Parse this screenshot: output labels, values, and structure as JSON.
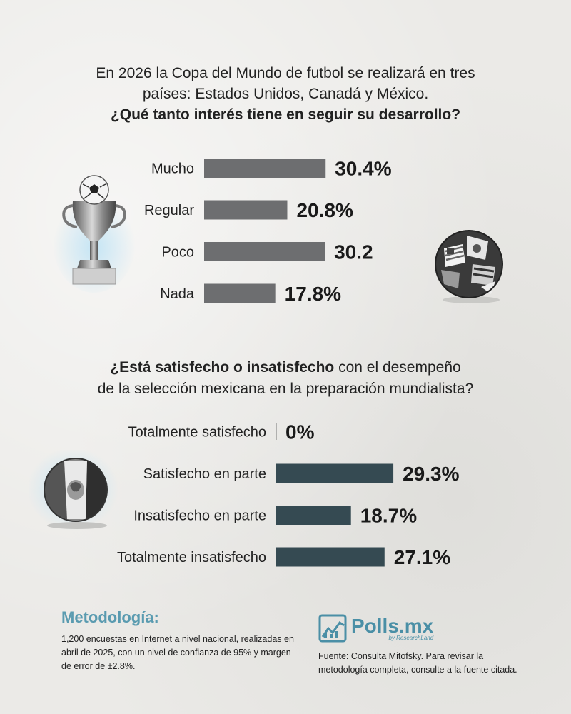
{
  "question1": {
    "line1": "En 2026 la Copa del Mundo de futbol se realizará en tres",
    "line2": "países: Estados Unidos, Canadá y México.",
    "line3": "¿Qué tanto interés tiene en seguir su desarrollo?"
  },
  "question2": {
    "bold_part": "¿Está satisfecho o insatisfecho",
    "rest_line1": " con el desempeño",
    "line2": "de la selección mexicana en la preparación mundialista?"
  },
  "chart_data": [
    {
      "type": "bar",
      "orientation": "horizontal",
      "categories": [
        "Mucho",
        "Regular",
        "Poco",
        "Nada"
      ],
      "values": [
        30.4,
        20.8,
        30.2,
        17.8
      ],
      "value_labels": [
        "30.4%",
        "20.8%",
        "30.2",
        "17.8%"
      ],
      "color": "#6d6e70"
    },
    {
      "type": "bar",
      "orientation": "horizontal",
      "categories": [
        "Totalmente satisfecho",
        "Satisfecho en parte",
        "Insatisfecho en parte",
        "Totalmente insatisfecho"
      ],
      "values": [
        0,
        29.3,
        18.7,
        27.1
      ],
      "value_labels": [
        "0%",
        "29.3%",
        "18.7%",
        "27.1%"
      ],
      "color": "#354a52"
    }
  ],
  "footer": {
    "method_title": "Metodología:",
    "method_text": "1,200 encuestas en Internet a nivel nacional, realizadas en abril de 2025, con un nivel de confianza de 95% y margen de error de ±2.8%.",
    "brand_name": "Polls.mx",
    "brand_sub": "by ResearchLand",
    "source_text": "Fuente: Consulta Mitofsky. Para revisar la metodología completa, consulte a la fuente citada."
  },
  "icons": [
    "trophy-icon",
    "flags-ball-icon",
    "mexico-ball-icon",
    "polls-logo-icon"
  ],
  "colors": {
    "accent": "#5a9bb0",
    "bar1": "#6d6e70",
    "bar2": "#354a52"
  }
}
